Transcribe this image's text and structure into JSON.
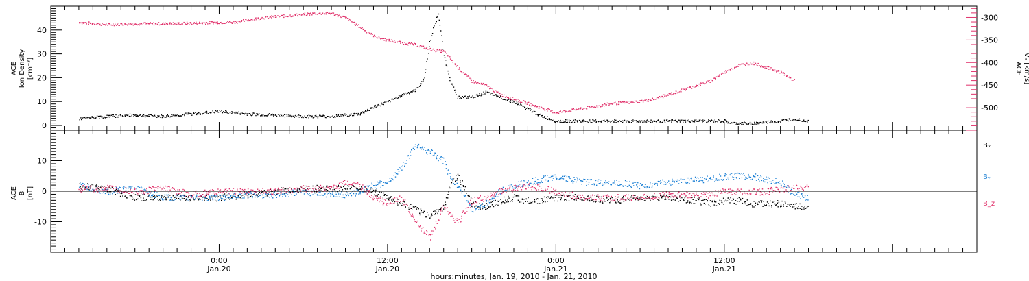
{
  "chart_data": [
    {
      "type": "scatter",
      "panel": "top",
      "ylabel_left": [
        "ACE",
        "Ion Density",
        "[cm⁻³]"
      ],
      "ylabel_right": [
        "ACE",
        "Vₓ [km/s]"
      ],
      "left_axis": {
        "ylim": [
          -2,
          50
        ],
        "ticks": [
          0,
          10,
          20,
          30,
          40
        ]
      },
      "right_axis": {
        "ylim": [
          -550,
          -275
        ],
        "ticks": [
          -300,
          -350,
          -400,
          -450,
          -500
        ]
      },
      "colors": {
        "density": "#000000",
        "vx": "#e0306a"
      },
      "series": [
        {
          "axis": "left",
          "color": "#000000",
          "points": [
            [
              -10,
              3
            ],
            [
              -8,
              4
            ],
            [
              -6,
              4.5
            ],
            [
              -4,
              4
            ],
            [
              -2,
              5
            ],
            [
              0,
              6
            ],
            [
              2,
              5
            ],
            [
              4,
              4.5
            ],
            [
              6,
              4
            ],
            [
              8,
              4
            ],
            [
              10,
              5
            ],
            [
              11,
              8
            ],
            [
              12,
              10
            ],
            [
              13,
              13
            ],
            [
              14,
              15
            ],
            [
              14.6,
              20
            ],
            [
              15,
              35
            ],
            [
              15.3,
              42
            ],
            [
              15.6,
              47
            ],
            [
              16,
              30
            ],
            [
              16.5,
              18
            ],
            [
              17,
              12
            ],
            [
              18,
              12
            ],
            [
              19,
              14
            ],
            [
              20,
              12
            ],
            [
              21,
              10
            ],
            [
              22,
              7
            ],
            [
              23,
              4
            ],
            [
              24,
              2
            ],
            [
              26,
              2
            ],
            [
              28,
              2
            ],
            [
              30,
              2
            ],
            [
              32,
              2
            ],
            [
              34,
              2
            ],
            [
              36,
              2
            ],
            [
              36.5,
              1
            ],
            [
              38,
              1
            ],
            [
              40,
              2
            ],
            [
              41,
              3
            ],
            [
              42,
              2
            ]
          ]
        },
        {
          "axis": "right",
          "color": "#e0306a",
          "points": [
            [
              -10,
              -310
            ],
            [
              -8,
              -315
            ],
            [
              -6,
              -313
            ],
            [
              -4,
              -313
            ],
            [
              -2,
              -312
            ],
            [
              0,
              -310
            ],
            [
              1,
              -310
            ],
            [
              2,
              -305
            ],
            [
              3,
              -300
            ],
            [
              5,
              -295
            ],
            [
              7,
              -290
            ],
            [
              8,
              -290
            ],
            [
              9,
              -300
            ],
            [
              10,
              -320
            ],
            [
              11,
              -340
            ],
            [
              12,
              -350
            ],
            [
              14,
              -360
            ],
            [
              15,
              -370
            ],
            [
              16,
              -375
            ],
            [
              17,
              -410
            ],
            [
              18,
              -440
            ],
            [
              19,
              -450
            ],
            [
              20,
              -470
            ],
            [
              21,
              -480
            ],
            [
              22,
              -490
            ],
            [
              23,
              -500
            ],
            [
              24,
              -510
            ],
            [
              25,
              -505
            ],
            [
              26,
              -500
            ],
            [
              27,
              -495
            ],
            [
              28,
              -490
            ],
            [
              29,
              -488
            ],
            [
              30,
              -485
            ],
            [
              31,
              -480
            ],
            [
              32,
              -470
            ],
            [
              33,
              -460
            ],
            [
              34,
              -450
            ],
            [
              35,
              -440
            ],
            [
              36,
              -420
            ],
            [
              37,
              -405
            ],
            [
              38,
              -400
            ],
            [
              39,
              -410
            ],
            [
              40,
              -420
            ],
            [
              41,
              -440
            ]
          ]
        }
      ]
    },
    {
      "type": "scatter",
      "panel": "bottom",
      "ylabel_left": [
        "ACE",
        "B",
        "[nT]"
      ],
      "ylim": [
        -20,
        20
      ],
      "yticks": [
        10,
        0,
        -10
      ],
      "legend": [
        {
          "label": "Bₓ",
          "color": "#000000"
        },
        {
          "label": "Bᵧ",
          "color": "#1a7fd4"
        },
        {
          "label": "B_z",
          "color": "#e0306a"
        }
      ],
      "series": [
        {
          "label": "Bₓ",
          "color": "#000000",
          "points": [
            [
              -10,
              2
            ],
            [
              -8,
              1
            ],
            [
              -6,
              -2
            ],
            [
              -4,
              -2
            ],
            [
              -2,
              -2
            ],
            [
              0,
              -2
            ],
            [
              2,
              -1
            ],
            [
              4,
              0
            ],
            [
              6,
              1
            ],
            [
              8,
              1
            ],
            [
              9,
              1
            ],
            [
              10,
              1
            ],
            [
              11,
              0
            ],
            [
              12,
              -2
            ],
            [
              13,
              -4
            ],
            [
              14,
              -6
            ],
            [
              15,
              -8
            ],
            [
              16,
              -5
            ],
            [
              16.5,
              3
            ],
            [
              17,
              5
            ],
            [
              18,
              -4
            ],
            [
              19,
              -5
            ],
            [
              20,
              -3
            ],
            [
              21,
              -2
            ],
            [
              22,
              -3
            ],
            [
              23,
              -3
            ],
            [
              24,
              -2
            ],
            [
              26,
              -2
            ],
            [
              28,
              -3
            ],
            [
              30,
              -2
            ],
            [
              32,
              -2
            ],
            [
              34,
              -3
            ],
            [
              35,
              -4
            ],
            [
              36,
              -3
            ],
            [
              37,
              -3
            ],
            [
              38,
              -4
            ],
            [
              39,
              -4
            ],
            [
              40,
              -4
            ],
            [
              41,
              -5
            ],
            [
              42,
              -5
            ]
          ]
        },
        {
          "label": "Bᵧ",
          "color": "#1a7fd4",
          "points": [
            [
              -10,
              2
            ],
            [
              -8,
              0
            ],
            [
              -6,
              1
            ],
            [
              -4,
              -2
            ],
            [
              -2,
              -2
            ],
            [
              0,
              -2
            ],
            [
              2,
              -1
            ],
            [
              4,
              -1
            ],
            [
              6,
              0
            ],
            [
              8,
              -1
            ],
            [
              9,
              -1
            ],
            [
              10,
              0
            ],
            [
              11,
              2
            ],
            [
              12,
              3
            ],
            [
              13,
              8
            ],
            [
              14,
              15
            ],
            [
              15,
              13
            ],
            [
              16,
              10
            ],
            [
              16.5,
              4
            ],
            [
              17,
              2
            ],
            [
              18,
              -6
            ],
            [
              19,
              -4
            ],
            [
              20,
              0
            ],
            [
              21,
              2
            ],
            [
              22,
              3
            ],
            [
              23,
              4
            ],
            [
              24,
              5
            ],
            [
              26,
              3
            ],
            [
              28,
              3
            ],
            [
              30,
              2
            ],
            [
              32,
              3
            ],
            [
              34,
              4
            ],
            [
              35,
              4
            ],
            [
              36,
              5
            ],
            [
              37,
              5
            ],
            [
              38,
              5
            ],
            [
              39,
              4
            ],
            [
              40,
              3
            ],
            [
              41,
              -1
            ],
            [
              42,
              -2
            ]
          ]
        },
        {
          "label": "B_z",
          "color": "#e0306a",
          "points": [
            [
              -10,
              1
            ],
            [
              -8,
              1
            ],
            [
              -6,
              0
            ],
            [
              -4,
              1
            ],
            [
              -2,
              -1
            ],
            [
              0,
              0
            ],
            [
              2,
              0
            ],
            [
              4,
              0
            ],
            [
              6,
              1
            ],
            [
              8,
              1
            ],
            [
              9,
              3
            ],
            [
              10,
              2
            ],
            [
              11,
              -2
            ],
            [
              12,
              -4
            ],
            [
              13,
              -2
            ],
            [
              14,
              -10
            ],
            [
              15,
              -15
            ],
            [
              16,
              -5
            ],
            [
              16.5,
              -8
            ],
            [
              17,
              -10
            ],
            [
              18,
              -3
            ],
            [
              19,
              -2
            ],
            [
              20,
              0
            ],
            [
              21,
              1
            ],
            [
              22,
              2
            ],
            [
              23,
              1
            ],
            [
              24,
              0
            ],
            [
              26,
              -2
            ],
            [
              28,
              -2
            ],
            [
              30,
              -2
            ],
            [
              32,
              -1
            ],
            [
              34,
              -1
            ],
            [
              35,
              -1
            ],
            [
              36,
              0
            ],
            [
              37,
              0
            ],
            [
              38,
              0
            ],
            [
              39,
              0
            ],
            [
              40,
              1
            ],
            [
              41,
              1
            ],
            [
              42,
              2
            ]
          ]
        }
      ]
    }
  ],
  "xaxis": {
    "range_hours": [
      -12,
      54
    ],
    "xlabel": "hours:minutes, Jan. 19, 2010 - Jan. 21, 2010",
    "major_ticks": [
      {
        "hour": 0,
        "time": "0:00",
        "date": "Jan.20"
      },
      {
        "hour": 12,
        "time": "12:00",
        "date": "Jan.20"
      },
      {
        "hour": 24,
        "time": "0:00",
        "date": "Jan.21"
      },
      {
        "hour": 36,
        "time": "12:00",
        "date": "Jan.21"
      }
    ]
  }
}
